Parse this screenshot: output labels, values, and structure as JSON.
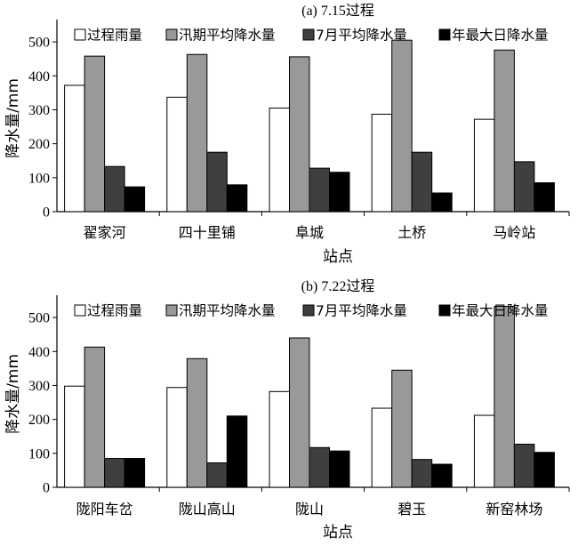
{
  "chart_data": [
    {
      "type": "bar",
      "title": "(a) 7.15过程",
      "xlabel": "站点",
      "ylabel": "降水量/mm",
      "ylim": [
        0,
        550
      ],
      "yticks": [
        0,
        100,
        200,
        300,
        400,
        500
      ],
      "legend_position": "top",
      "grid": false,
      "categories": [
        "翟家河",
        "四十里铺",
        "阜城",
        "土桥",
        "马岭站"
      ],
      "series": [
        {
          "name": "过程雨量",
          "color": "#ffffff",
          "values": [
            372,
            337,
            305,
            287,
            272
          ]
        },
        {
          "name": "汛期平均降水量",
          "color": "#999999",
          "values": [
            458,
            463,
            456,
            505,
            476
          ]
        },
        {
          "name": "7月平均降水量",
          "color": "#3f3f3f",
          "values": [
            133,
            175,
            128,
            175,
            147
          ]
        },
        {
          "name": "年最大日降水量",
          "color": "#000000",
          "values": [
            73,
            79,
            116,
            55,
            85
          ]
        }
      ]
    },
    {
      "type": "bar",
      "title": "(b) 7.22过程",
      "xlabel": "站点",
      "ylabel": "降水量/mm",
      "ylim": [
        0,
        550
      ],
      "yticks": [
        0,
        100,
        200,
        300,
        400,
        500
      ],
      "legend_position": "top",
      "grid": false,
      "categories": [
        "陇阳车岔",
        "陇山高山",
        "陇山",
        "碧玉",
        "新窑林场"
      ],
      "series": [
        {
          "name": "过程雨量",
          "color": "#ffffff",
          "values": [
            298,
            294,
            282,
            233,
            212
          ]
        },
        {
          "name": "汛期平均降水量",
          "color": "#999999",
          "values": [
            413,
            379,
            440,
            345,
            533
          ]
        },
        {
          "name": "7月平均降水量",
          "color": "#3f3f3f",
          "values": [
            85,
            72,
            117,
            82,
            127
          ]
        },
        {
          "name": "年最大日降水量",
          "color": "#000000",
          "values": [
            85,
            210,
            107,
            68,
            103
          ]
        }
      ]
    }
  ]
}
